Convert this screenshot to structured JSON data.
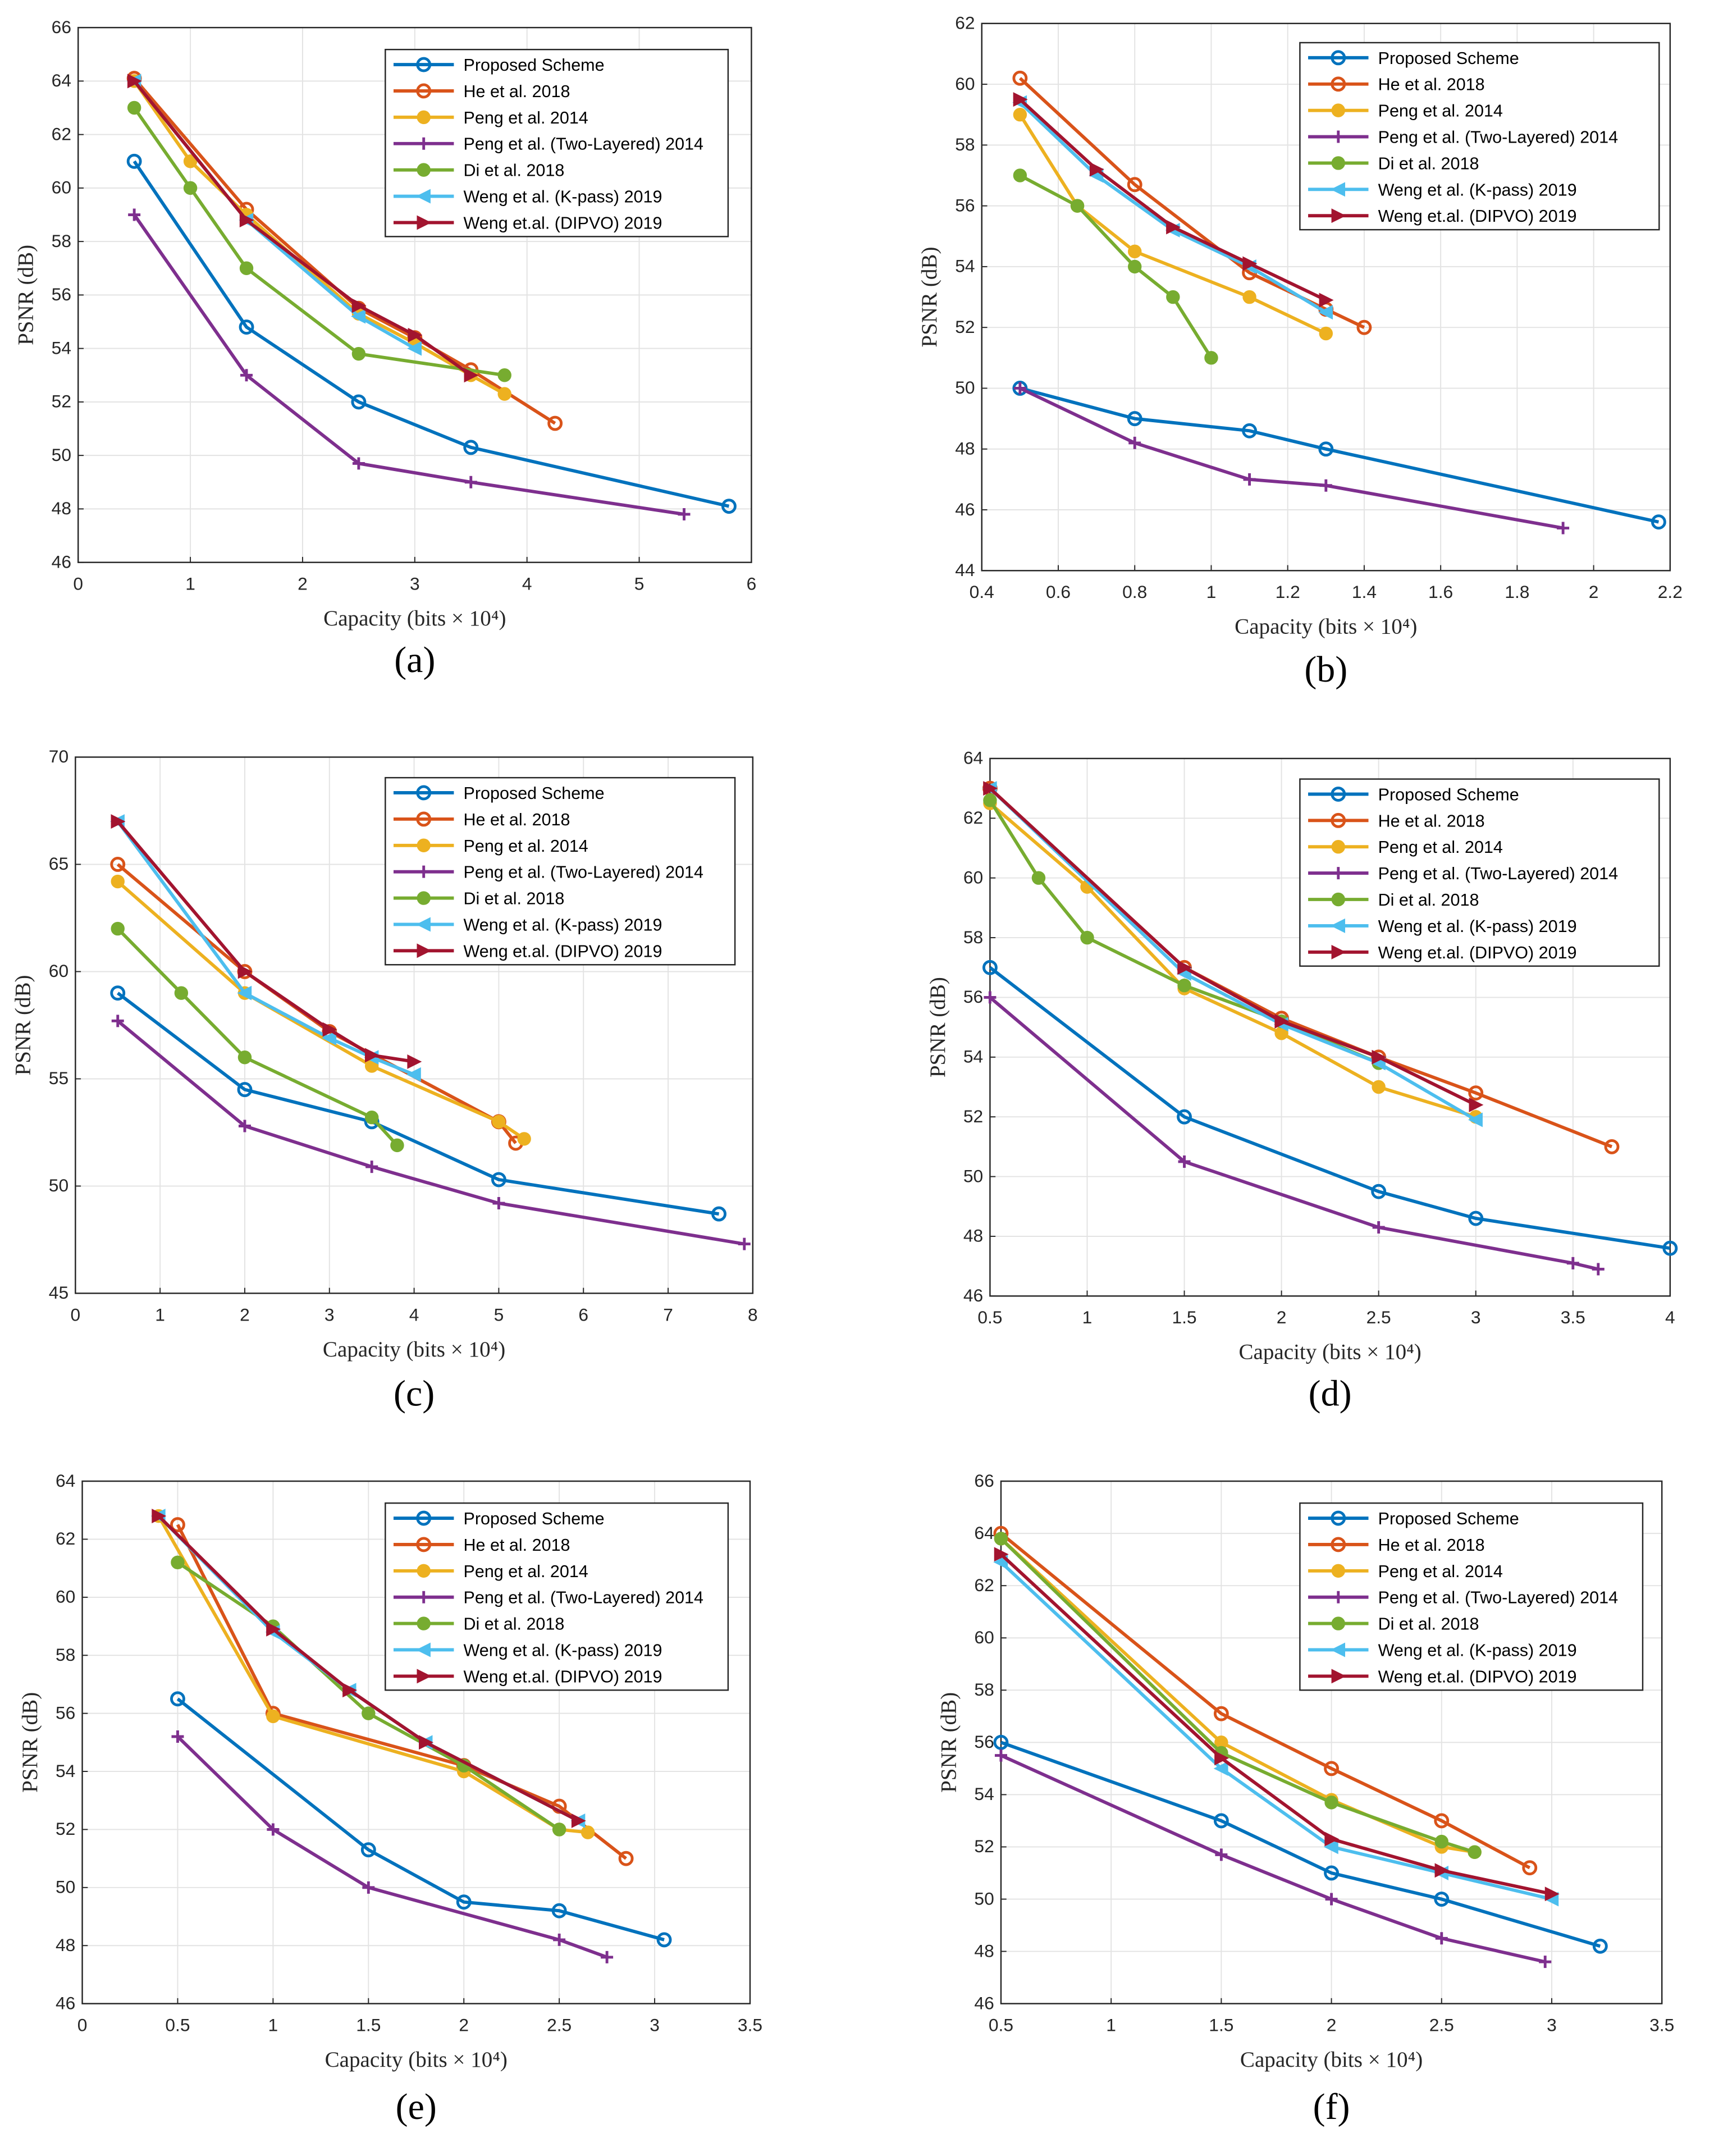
{
  "colors": {
    "Proposed Scheme": "#0072BD",
    "He et al. 2018": "#D95319",
    "Peng et al. 2014": "#EDB120",
    "Peng et al. (Two-Layered) 2014": "#7E2F8E",
    "Di et al. 2018": "#77AC30",
    "Weng et al. (K-pass) 2019": "#4DBEEE",
    "Weng et.al. (DIPVO) 2019": "#A2142F"
  },
  "markers": {
    "Proposed Scheme": "open-circle",
    "He et al. 2018": "open-circle",
    "Peng et al. 2014": "filled-circle",
    "Peng et al. (Two-Layered) 2014": "plus",
    "Di et al. 2018": "filled-circle",
    "Weng et al. (K-pass) 2019": "left-triangle",
    "Weng et.al. (DIPVO) 2019": "right-triangle"
  },
  "chart_data": [
    {
      "type": "line",
      "panel": "(a)",
      "xlabel": "Capacity (bits × 10⁴)",
      "ylabel": "PSNR (dB)",
      "xlim": [
        0,
        6
      ],
      "ylim": [
        46,
        66
      ],
      "xticks": [
        0,
        1,
        2,
        3,
        4,
        5,
        6
      ],
      "yticks": [
        46,
        48,
        50,
        52,
        54,
        56,
        58,
        60,
        62,
        64,
        66
      ],
      "grid": true,
      "legend": "top-right",
      "series": [
        {
          "name": "Proposed Scheme",
          "x": [
            0.5,
            1.5,
            2.5,
            3.5,
            5.8
          ],
          "y": [
            61,
            54.8,
            52,
            50.3,
            48.1
          ]
        },
        {
          "name": "He et al. 2018",
          "x": [
            0.5,
            1.5,
            2.5,
            3,
            3.5,
            4.25
          ],
          "y": [
            64.1,
            59.2,
            55.5,
            54.4,
            53.2,
            51.2
          ]
        },
        {
          "name": "Peng et al. 2014",
          "x": [
            0.5,
            1,
            1.5,
            2.5,
            3,
            3.5,
            3.8
          ],
          "y": [
            64,
            61,
            59,
            55.3,
            54.2,
            53,
            52.3
          ]
        },
        {
          "name": "Peng et al. (Two-Layered) 2014",
          "x": [
            0.5,
            1.5,
            2.5,
            3.5,
            5.4
          ],
          "y": [
            59,
            53,
            49.7,
            49,
            47.8
          ]
        },
        {
          "name": "Di et al. 2018",
          "x": [
            0.5,
            1,
            1.5,
            2.5,
            3.8
          ],
          "y": [
            63,
            60,
            57,
            53.8,
            53
          ]
        },
        {
          "name": "Weng et al. (K-pass) 2019",
          "x": [
            0.5,
            1.5,
            2.5,
            3
          ],
          "y": [
            64,
            58.8,
            55.2,
            54
          ]
        },
        {
          "name": "Weng et.al. (DIPVO) 2019",
          "x": [
            0.5,
            1.5,
            2.5,
            3,
            3.5
          ],
          "y": [
            64,
            58.8,
            55.6,
            54.5,
            53
          ]
        }
      ]
    },
    {
      "type": "line",
      "panel": "(b)",
      "xlabel": "Capacity (bits × 10⁴)",
      "ylabel": "PSNR (dB)",
      "xlim": [
        0.4,
        2.2
      ],
      "ylim": [
        44,
        62
      ],
      "xticks": [
        0.4,
        0.6,
        0.8,
        1,
        1.2,
        1.4,
        1.6,
        1.8,
        2,
        2.2
      ],
      "yticks": [
        44,
        46,
        48,
        50,
        52,
        54,
        56,
        58,
        60,
        62
      ],
      "grid": true,
      "legend": "top-right",
      "series": [
        {
          "name": "Proposed Scheme",
          "x": [
            0.5,
            0.8,
            1.1,
            1.3,
            2.17
          ],
          "y": [
            50,
            49,
            48.6,
            48,
            45.6
          ]
        },
        {
          "name": "He et al. 2018",
          "x": [
            0.5,
            0.8,
            1.1,
            1.3,
            1.4
          ],
          "y": [
            60.2,
            56.7,
            53.8,
            52.6,
            52
          ]
        },
        {
          "name": "Peng et al. 2014",
          "x": [
            0.5,
            0.65,
            0.8,
            1.1,
            1.3
          ],
          "y": [
            59,
            56,
            54.5,
            53,
            51.8
          ]
        },
        {
          "name": "Peng et al. (Two-Layered) 2014",
          "x": [
            0.5,
            0.8,
            1.1,
            1.3,
            1.92
          ],
          "y": [
            50,
            48.2,
            47,
            46.8,
            45.4
          ]
        },
        {
          "name": "Di et al. 2018",
          "x": [
            0.5,
            0.65,
            0.8,
            0.9,
            1
          ],
          "y": [
            57,
            56,
            54,
            53,
            51
          ]
        },
        {
          "name": "Weng et al. (K-pass) 2019",
          "x": [
            0.5,
            0.7,
            0.9,
            1.1,
            1.3
          ],
          "y": [
            59.4,
            57,
            55.2,
            54,
            52.5
          ]
        },
        {
          "name": "Weng et.al. (DIPVO) 2019",
          "x": [
            0.5,
            0.7,
            0.9,
            1.1,
            1.3
          ],
          "y": [
            59.5,
            57.2,
            55.3,
            54.1,
            52.9
          ]
        }
      ]
    },
    {
      "type": "line",
      "panel": "(c)",
      "xlabel": "Capacity (bits × 10⁴)",
      "ylabel": "PSNR (dB)",
      "xlim": [
        0,
        8
      ],
      "ylim": [
        45,
        70
      ],
      "xticks": [
        0,
        1,
        2,
        3,
        4,
        5,
        6,
        7,
        8
      ],
      "yticks": [
        45,
        50,
        55,
        60,
        65,
        70
      ],
      "grid": true,
      "legend": "top-right",
      "series": [
        {
          "name": "Proposed Scheme",
          "x": [
            0.5,
            2,
            3.5,
            5,
            7.6
          ],
          "y": [
            59,
            54.5,
            53,
            50.3,
            48.7
          ]
        },
        {
          "name": "He et al. 2018",
          "x": [
            0.5,
            2,
            3,
            5,
            5.2
          ],
          "y": [
            65,
            60,
            57.2,
            53,
            52
          ]
        },
        {
          "name": "Peng et al. 2014",
          "x": [
            0.5,
            2,
            3.5,
            5,
            5.3
          ],
          "y": [
            64.2,
            59,
            55.6,
            53,
            52.2
          ]
        },
        {
          "name": "Peng et al. (Two-Layered) 2014",
          "x": [
            0.5,
            2,
            3.5,
            5,
            7.9
          ],
          "y": [
            57.7,
            52.8,
            50.9,
            49.2,
            47.3
          ]
        },
        {
          "name": "Di et al. 2018",
          "x": [
            0.5,
            1.25,
            2,
            3.5,
            3.8
          ],
          "y": [
            62,
            59,
            56,
            53.2,
            51.9
          ]
        },
        {
          "name": "Weng et al. (K-pass) 2019",
          "x": [
            0.5,
            2,
            3,
            3.5,
            4
          ],
          "y": [
            67,
            59,
            56.9,
            56,
            55.2
          ]
        },
        {
          "name": "Weng et.al. (DIPVO) 2019",
          "x": [
            0.5,
            2,
            3,
            3.5,
            4
          ],
          "y": [
            67,
            60,
            57.3,
            56.1,
            55.8
          ]
        }
      ]
    },
    {
      "type": "line",
      "panel": "(d)",
      "xlabel": "Capacity (bits × 10⁴)",
      "ylabel": "PSNR (dB)",
      "xlim": [
        0.5,
        4
      ],
      "ylim": [
        46,
        64
      ],
      "xticks": [
        0.5,
        1,
        1.5,
        2,
        2.5,
        3,
        3.5,
        4
      ],
      "yticks": [
        46,
        48,
        50,
        52,
        54,
        56,
        58,
        60,
        62,
        64
      ],
      "grid": true,
      "legend": "top-right",
      "series": [
        {
          "name": "Proposed Scheme",
          "x": [
            0.5,
            1.5,
            2.5,
            3,
            4
          ],
          "y": [
            57,
            52,
            49.5,
            48.6,
            47.6
          ]
        },
        {
          "name": "He et al. 2018",
          "x": [
            0.5,
            1.5,
            2,
            2.5,
            3,
            3.7
          ],
          "y": [
            63,
            57,
            55.3,
            54,
            52.8,
            51
          ]
        },
        {
          "name": "Peng et al. 2014",
          "x": [
            0.5,
            1,
            1.5,
            2,
            2.5,
            3
          ],
          "y": [
            62.5,
            59.7,
            56.3,
            54.8,
            53,
            52
          ]
        },
        {
          "name": "Peng et al. (Two-Layered) 2014",
          "x": [
            0.5,
            1.5,
            2.5,
            3.5,
            3.63
          ],
          "y": [
            56,
            50.5,
            48.3,
            47.1,
            46.9
          ]
        },
        {
          "name": "Di et al. 2018",
          "x": [
            0.5,
            0.75,
            1,
            1.5,
            2,
            2.5
          ],
          "y": [
            62.6,
            60,
            58,
            56.4,
            55.2,
            53.8
          ]
        },
        {
          "name": "Weng et al. (K-pass) 2019",
          "x": [
            0.5,
            1.5,
            2,
            2.5,
            3
          ],
          "y": [
            63,
            56.8,
            55.1,
            53.8,
            51.9
          ]
        },
        {
          "name": "Weng et.al. (DIPVO) 2019",
          "x": [
            0.5,
            1.5,
            2,
            2.5,
            3
          ],
          "y": [
            63,
            57,
            55.2,
            54,
            52.4
          ]
        }
      ]
    },
    {
      "type": "line",
      "panel": "(e)",
      "xlabel": "Capacity (bits × 10⁴)",
      "ylabel": "PSNR (dB)",
      "xlim": [
        0,
        3.5
      ],
      "ylim": [
        46,
        64
      ],
      "xticks": [
        0,
        0.5,
        1,
        1.5,
        2,
        2.5,
        3,
        3.5
      ],
      "yticks": [
        46,
        48,
        50,
        52,
        54,
        56,
        58,
        60,
        62,
        64
      ],
      "grid": true,
      "legend": "top-right",
      "series": [
        {
          "name": "Proposed Scheme",
          "x": [
            0.5,
            1.5,
            2,
            2.5,
            3.05
          ],
          "y": [
            56.5,
            51.3,
            49.5,
            49.2,
            48.2
          ]
        },
        {
          "name": "He et al. 2018",
          "x": [
            0.5,
            1,
            2,
            2.5,
            2.85
          ],
          "y": [
            62.5,
            56,
            54.2,
            52.8,
            51
          ]
        },
        {
          "name": "Peng et al. 2014",
          "x": [
            0.4,
            1,
            2,
            2.5,
            2.65
          ],
          "y": [
            62.8,
            55.9,
            54,
            52,
            51.9
          ]
        },
        {
          "name": "Peng et al. (Two-Layered) 2014",
          "x": [
            0.5,
            1,
            1.5,
            2.5,
            2.75
          ],
          "y": [
            55.2,
            52,
            50,
            48.2,
            47.6
          ]
        },
        {
          "name": "Di et al. 2018",
          "x": [
            0.5,
            1,
            1.5,
            2,
            2.5
          ],
          "y": [
            61.2,
            59,
            56,
            54.2,
            52
          ]
        },
        {
          "name": "Weng et al. (K-pass) 2019",
          "x": [
            0.4,
            1,
            1.4,
            1.8,
            2.6
          ],
          "y": [
            62.8,
            58.8,
            56.8,
            55,
            52.3
          ]
        },
        {
          "name": "Weng et.al. (DIPVO) 2019",
          "x": [
            0.4,
            1,
            1.4,
            1.8,
            2.6
          ],
          "y": [
            62.8,
            58.9,
            56.8,
            55,
            52.3
          ]
        }
      ]
    },
    {
      "type": "line",
      "panel": "(f)",
      "xlabel": "Capacity (bits × 10⁴)",
      "ylabel": "PSNR (dB)",
      "xlim": [
        0.5,
        3.5
      ],
      "ylim": [
        46,
        66
      ],
      "xticks": [
        0.5,
        1,
        1.5,
        2,
        2.5,
        3,
        3.5
      ],
      "yticks": [
        46,
        48,
        50,
        52,
        54,
        56,
        58,
        60,
        62,
        64,
        66
      ],
      "grid": true,
      "legend": "top-right",
      "series": [
        {
          "name": "Proposed Scheme",
          "x": [
            0.5,
            1.5,
            2,
            2.5,
            3.22
          ],
          "y": [
            56,
            53,
            51,
            50,
            48.2
          ]
        },
        {
          "name": "He et al. 2018",
          "x": [
            0.5,
            1.5,
            2,
            2.5,
            2.9
          ],
          "y": [
            64,
            57.1,
            55,
            53,
            51.2
          ]
        },
        {
          "name": "Peng et al. 2014",
          "x": [
            0.5,
            1.5,
            2,
            2.5,
            2.65
          ],
          "y": [
            63.8,
            56,
            53.8,
            52,
            51.8
          ]
        },
        {
          "name": "Peng et al. (Two-Layered) 2014",
          "x": [
            0.5,
            1.5,
            2,
            2.5,
            2.97
          ],
          "y": [
            55.5,
            51.7,
            50,
            48.5,
            47.6
          ]
        },
        {
          "name": "Di et al. 2018",
          "x": [
            0.5,
            1.5,
            2,
            2.5,
            2.65
          ],
          "y": [
            63.8,
            55.6,
            53.7,
            52.2,
            51.8
          ]
        },
        {
          "name": "Weng et al. (K-pass) 2019",
          "x": [
            0.5,
            1.5,
            2,
            2.5,
            3
          ],
          "y": [
            62.9,
            55,
            52,
            51,
            50
          ]
        },
        {
          "name": "Weng et.al. (DIPVO) 2019",
          "x": [
            0.5,
            1.5,
            2,
            2.5,
            3
          ],
          "y": [
            63.2,
            55.4,
            52.3,
            51.1,
            50.2
          ]
        }
      ]
    }
  ]
}
